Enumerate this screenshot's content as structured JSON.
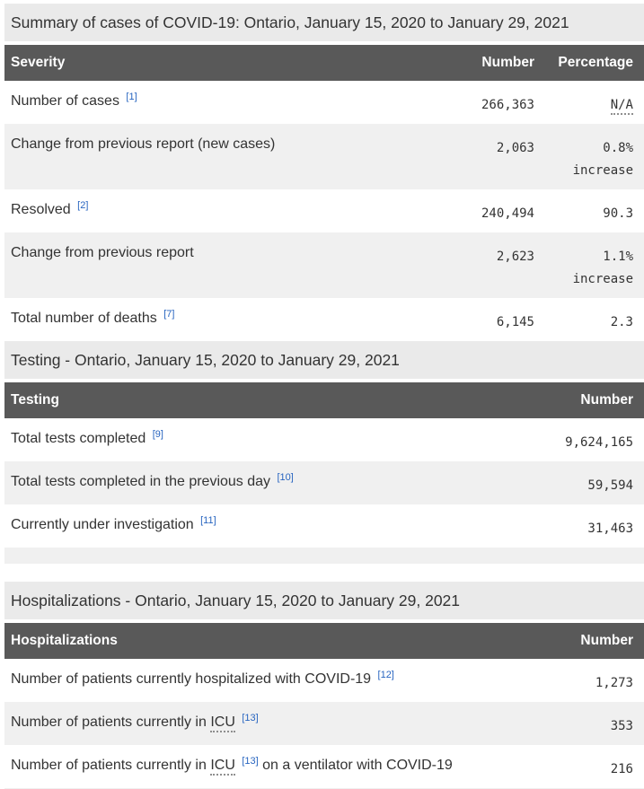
{
  "colors": {
    "caption_bg": "#eaeaea",
    "table_header_bg": "#595959",
    "table_header_text": "#ffffff",
    "stripe_bg": "#f0f0f0",
    "row_bg": "#ffffff",
    "body_text": "#333333",
    "footnote_link": "#2865c0"
  },
  "tables": [
    {
      "name": "summary-of-cases",
      "caption": "Summary of cases of COVID-19: Ontario, January 15, 2020 to January 29, 2021",
      "columns": [
        {
          "label": "Severity",
          "align": "left"
        },
        {
          "label": "Number",
          "align": "right"
        },
        {
          "label": "Percentage",
          "align": "right"
        }
      ],
      "rows": [
        {
          "label": [
            {
              "text": "Number of cases"
            },
            {
              "footnote": "[1]"
            }
          ],
          "number": "266,363",
          "percentage": {
            "value": "N/A",
            "abbr": true
          }
        },
        {
          "label": [
            {
              "text": "Change from previous report (new cases)"
            }
          ],
          "number": "2,063",
          "percentage": {
            "value": "0.8%",
            "qualifier": "increase"
          }
        },
        {
          "label": [
            {
              "text": "Resolved"
            },
            {
              "footnote": "[2]"
            }
          ],
          "number": "240,494",
          "percentage": {
            "value": "90.3"
          }
        },
        {
          "label": [
            {
              "text": "Change from previous report"
            }
          ],
          "number": "2,623",
          "percentage": {
            "value": "1.1%",
            "qualifier": "increase"
          }
        },
        {
          "label": [
            {
              "text": "Total number of deaths"
            },
            {
              "footnote": "[7]"
            }
          ],
          "number": "6,145",
          "percentage": {
            "value": "2.3"
          }
        }
      ]
    },
    {
      "name": "testing",
      "caption": "Testing - Ontario, January 15, 2020 to January 29, 2021",
      "columns": [
        {
          "label": "Testing",
          "align": "left"
        },
        {
          "label": "Number",
          "align": "right"
        }
      ],
      "rows": [
        {
          "label": [
            {
              "text": "Total tests completed"
            },
            {
              "footnote": "[9]"
            }
          ],
          "number": "9,624,165"
        },
        {
          "label": [
            {
              "text": "Total tests completed in the previous day"
            },
            {
              "footnote": "[10]"
            }
          ],
          "number": "59,594"
        },
        {
          "label": [
            {
              "text": "Currently under investigation"
            },
            {
              "footnote": "[11]"
            }
          ],
          "number": "31,463"
        },
        {
          "empty": true
        }
      ]
    },
    {
      "name": "hospitalizations",
      "caption": "Hospitalizations - Ontario, January 15, 2020 to January 29, 2021",
      "columns": [
        {
          "label": "Hospitalizations",
          "align": "left"
        },
        {
          "label": "Number",
          "align": "right"
        }
      ],
      "rows": [
        {
          "label": [
            {
              "text": "Number of patients currently hospitalized with COVID-19"
            },
            {
              "footnote": "[12]"
            }
          ],
          "number": "1,273"
        },
        {
          "label": [
            {
              "text": "Number of patients currently in"
            },
            {
              "abbr": "ICU"
            },
            {
              "footnote": "[13]"
            }
          ],
          "number": "353"
        },
        {
          "label": [
            {
              "text": "Number of patients currently in"
            },
            {
              "abbr": "ICU"
            },
            {
              "footnote": "[13]"
            },
            {
              "text": "on a ventilator with COVID-19"
            }
          ],
          "number": "216"
        },
        {
          "empty": true
        }
      ]
    }
  ]
}
